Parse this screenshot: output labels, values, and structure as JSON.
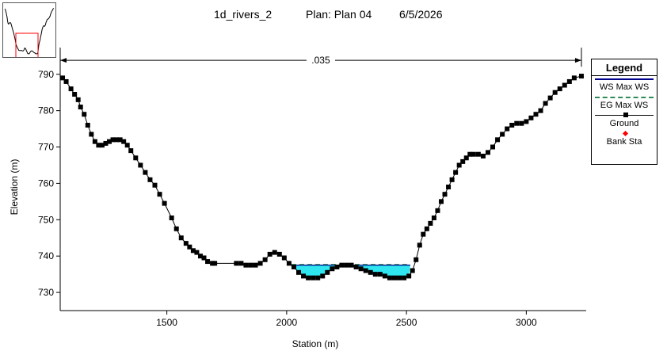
{
  "header": {
    "project": "1d_rivers_2",
    "plan": "Plan: Plan 04",
    "date": "6/5/2026"
  },
  "colors": {
    "water_fill": "#2fe6f0",
    "ws_line": "#00008b",
    "eg_line": "#2e8b57",
    "ground": "#000000",
    "bank_sta": "#ff0000",
    "thumb_box": "#ff0000"
  },
  "chart_data": {
    "type": "line",
    "title": "",
    "xlabel": "Station (m)",
    "ylabel": "Elevation (m)",
    "xlim": [
      1055,
      3250
    ],
    "ylim": [
      725,
      793
    ],
    "xticks": [
      1500,
      2000,
      2500,
      3000
    ],
    "yticks": [
      730,
      740,
      750,
      760,
      770,
      780,
      790
    ],
    "grid": false,
    "legend_position": "right",
    "manning_annotation": {
      "label": ".035",
      "x_start": 1055,
      "x_end": 3230,
      "elevation": 791
    },
    "water_surface": 737.5,
    "series": [
      {
        "name": "WS Max WS",
        "style": "solid-line",
        "segments": [
          [
            2020,
            2516
          ]
        ]
      },
      {
        "name": "EG Max WS",
        "style": "dashed-line",
        "segments": [
          [
            2020,
            2516
          ]
        ]
      },
      {
        "name": "Ground",
        "style": "line-with-square-markers",
        "x": [
          1065,
          1080,
          1100,
          1115,
          1130,
          1140,
          1155,
          1170,
          1185,
          1200,
          1215,
          1230,
          1245,
          1260,
          1275,
          1290,
          1305,
          1320,
          1335,
          1350,
          1370,
          1390,
          1410,
          1430,
          1450,
          1470,
          1490,
          1520,
          1540,
          1560,
          1580,
          1595,
          1610,
          1625,
          1640,
          1655,
          1670,
          1690,
          1700,
          1790,
          1810,
          1830,
          1850,
          1870,
          1890,
          1910,
          1930,
          1950,
          1970,
          1990,
          2010,
          2030,
          2050,
          2070,
          2090,
          2110,
          2130,
          2150,
          2170,
          2190,
          2210,
          2230,
          2250,
          2270,
          2290,
          2310,
          2330,
          2350,
          2370,
          2390,
          2410,
          2430,
          2450,
          2470,
          2490,
          2510,
          2525,
          2540,
          2555,
          2570,
          2585,
          2600,
          2615,
          2630,
          2645,
          2660,
          2675,
          2690,
          2705,
          2720,
          2735,
          2750,
          2765,
          2780,
          2800,
          2820,
          2840,
          2860,
          2880,
          2900,
          2920,
          2940,
          2960,
          2980,
          3000,
          3020,
          3040,
          3060,
          3080,
          3100,
          3120,
          3140,
          3160,
          3180,
          3200,
          3230
        ],
        "y": [
          789,
          788,
          786,
          784.5,
          783,
          781,
          779,
          776,
          773.5,
          771.5,
          770.5,
          770.5,
          771,
          771.5,
          772,
          772,
          772,
          771.5,
          770.5,
          769,
          767,
          765,
          763,
          761,
          759.5,
          757,
          754.5,
          750.5,
          747.5,
          745,
          743.5,
          742.5,
          741.5,
          741,
          740,
          739.5,
          738.5,
          738,
          738,
          738,
          738,
          737.5,
          737.5,
          737.5,
          738,
          739,
          740.5,
          741,
          740.5,
          739.5,
          738,
          737,
          735.5,
          734.5,
          734,
          734,
          734,
          734.5,
          735.5,
          736.5,
          737,
          737.5,
          737.5,
          737.5,
          737,
          736.5,
          736,
          735.5,
          735,
          735,
          734.5,
          734,
          734,
          734,
          734,
          734.5,
          736,
          739,
          743,
          746,
          747.5,
          749,
          750.5,
          752.5,
          755,
          757,
          759,
          761,
          763,
          765,
          766,
          767,
          768,
          768,
          768,
          767.5,
          768.5,
          770,
          772,
          773.5,
          775,
          776,
          776.5,
          776.5,
          777,
          778,
          779,
          780,
          782,
          783.5,
          785,
          786,
          787,
          788,
          789,
          789.5
        ]
      },
      {
        "name": "Bank Sta",
        "style": "red-diamond-markers",
        "x": [],
        "y": []
      }
    ]
  },
  "legend": {
    "title": "Legend",
    "items": [
      "WS Max WS",
      "EG Max WS",
      "Ground",
      "Bank Sta"
    ]
  }
}
